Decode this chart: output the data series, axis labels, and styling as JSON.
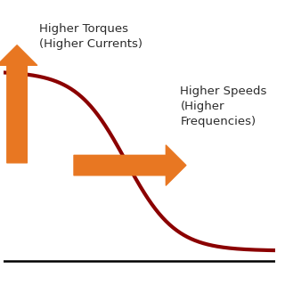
{
  "background_color": "#ffffff",
  "curve_color": "#8B0000",
  "curve_linewidth": 3.0,
  "arrow_color": "#E87722",
  "text_color": "#2b2b2b",
  "label1": "Higher Torques\n(Higher Currents)",
  "label2": "Higher Speeds\n(Higher\nFrequencies)",
  "font_size": 9.5,
  "xlim": [
    0,
    10
  ],
  "ylim": [
    0,
    10
  ]
}
